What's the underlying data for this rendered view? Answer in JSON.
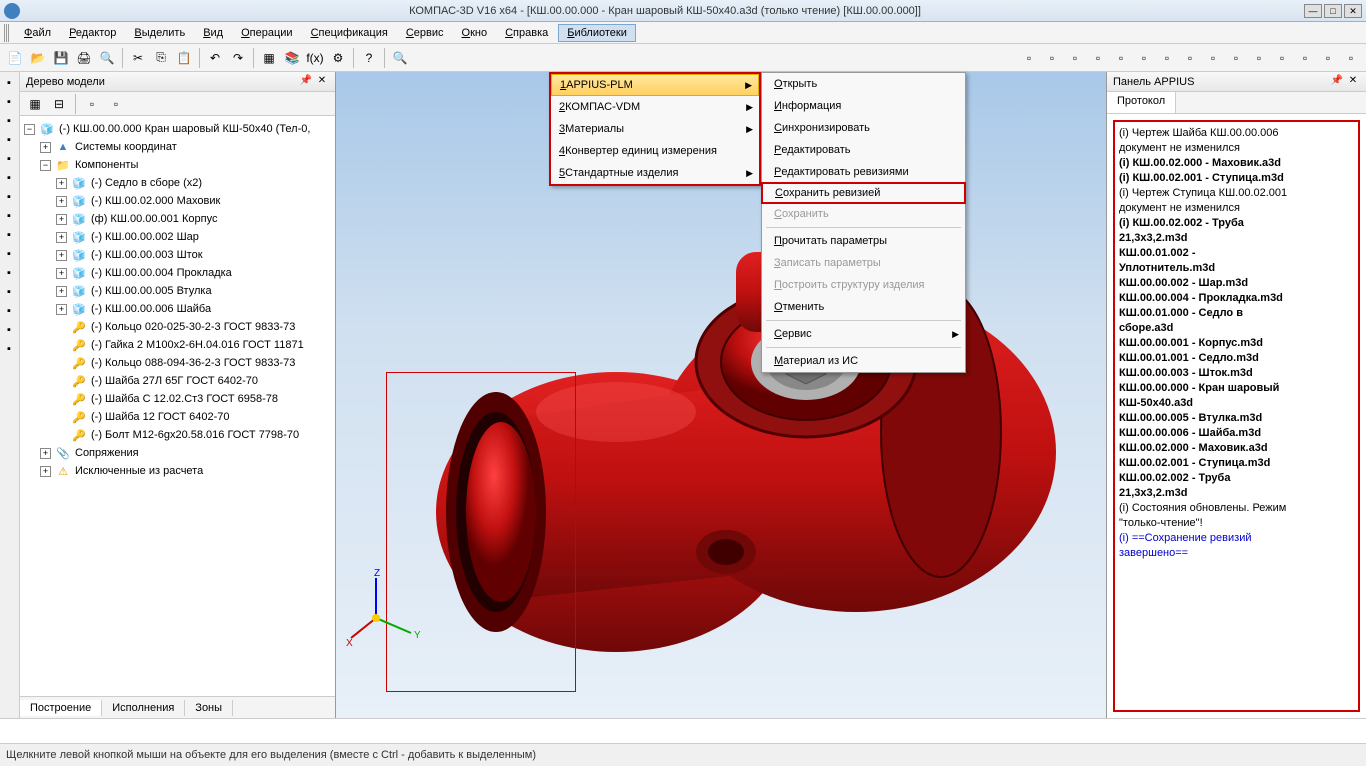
{
  "title": "КОМПАС-3D V16  x64 - [КШ.00.00.000 - Кран шаровый КШ-50х40.a3d (только чтение) [КШ.00.00.000]]",
  "menubar": [
    "Файл",
    "Редактор",
    "Выделить",
    "Вид",
    "Операции",
    "Спецификация",
    "Сервис",
    "Окно",
    "Справка",
    "Библиотеки"
  ],
  "menubar_active_index": 9,
  "tree": {
    "title": "Дерево модели",
    "tabs": [
      "Построение",
      "Исполнения",
      "Зоны"
    ],
    "root": "(-) КШ.00.00.000 Кран шаровый КШ-50х40 (Тел-0,",
    "n1": "Системы координат",
    "n2": "Компоненты",
    "items": [
      "(-) Седло в сборе (x2)",
      "(-) КШ.00.02.000 Маховик",
      "(ф) КШ.00.00.001 Корпус",
      "(-) КШ.00.00.002 Шар",
      "(-) КШ.00.00.003 Шток",
      "(-) КШ.00.00.004 Прокладка",
      "(-) КШ.00.00.005 Втулка",
      "(-) КШ.00.00.006 Шайба",
      "(-) Кольцо 020-025-30-2-3 ГОСТ 9833-73",
      "(-) Гайка 2 M100x2-6H.04.016 ГОСТ 11871",
      "(-) Кольцо 088-094-36-2-3 ГОСТ 9833-73",
      "(-) Шайба 27Л 65Г ГОСТ 6402-70",
      "(-) Шайба C 12.02.Ст3 ГОСТ 6958-78",
      "(-) Шайба 12  ГОСТ 6402-70",
      "(-) Болт M12-6gx20.58.016 ГОСТ 7798-70"
    ],
    "n3": "Сопряжения",
    "n4": "Исключенные из расчета"
  },
  "submenu1": [
    {
      "t": "1 APPIUS-PLM",
      "arrow": true,
      "hl": true
    },
    {
      "t": "2 КОМПАС-VDM",
      "arrow": true
    },
    {
      "t": "3 Материалы",
      "arrow": true
    },
    {
      "t": "4 Конвертер единиц измерения"
    },
    {
      "t": "5 Стандартные изделия",
      "arrow": true
    }
  ],
  "submenu2": [
    {
      "t": "Открыть"
    },
    {
      "t": "Информация"
    },
    {
      "t": "Синхронизировать"
    },
    {
      "t": "Редактировать"
    },
    {
      "t": "Редактировать ревизиями"
    },
    {
      "t": "Сохранить ревизией",
      "boxed": true
    },
    {
      "t": "Сохранить",
      "disabled": true
    },
    {
      "sep": true
    },
    {
      "t": "Прочитать параметры"
    },
    {
      "t": "Записать параметры",
      "disabled": true
    },
    {
      "t": "Построить структуру изделия",
      "disabled": true
    },
    {
      "t": "Отменить"
    },
    {
      "sep": true
    },
    {
      "t": "Сервис",
      "arrow": true
    },
    {
      "sep": true
    },
    {
      "t": "Материал из ИС"
    }
  ],
  "right": {
    "title": "Панель APPIUS",
    "tab": "Протокол",
    "lines": [
      {
        "t": "(i) Чертеж Шайба КШ.00.00.006"
      },
      {
        "t": " документ не изменился"
      },
      {
        "t": "(i) КШ.00.02.000 - Маховик.a3d",
        "b": true
      },
      {
        "t": "(i) КШ.00.02.001 - Ступица.m3d",
        "b": true
      },
      {
        "t": "(i) Чертеж Ступица КШ.00.02.001"
      },
      {
        "t": " документ не изменился"
      },
      {
        "t": "(i) КШ.00.02.002 - Труба",
        "b": true
      },
      {
        "t": "21,3х3,2.m3d",
        "b": true
      },
      {
        "t": "КШ.00.01.002 -",
        "b": true
      },
      {
        "t": "Уплотнитель.m3d",
        "b": true
      },
      {
        "t": "КШ.00.00.002 - Шар.m3d",
        "b": true
      },
      {
        "t": "КШ.00.00.004 - Прокладка.m3d",
        "b": true
      },
      {
        "t": "КШ.00.01.000 - Седло в",
        "b": true
      },
      {
        "t": "сборе.a3d",
        "b": true
      },
      {
        "t": "КШ.00.00.001 - Корпус.m3d",
        "b": true
      },
      {
        "t": "КШ.00.01.001 - Седло.m3d",
        "b": true
      },
      {
        "t": "КШ.00.00.003 - Шток.m3d",
        "b": true
      },
      {
        "t": "КШ.00.00.000 - Кран шаровый",
        "b": true
      },
      {
        "t": "КШ-50х40.a3d",
        "b": true
      },
      {
        "t": "КШ.00.00.005 - Втулка.m3d",
        "b": true
      },
      {
        "t": "КШ.00.00.006 - Шайба.m3d",
        "b": true
      },
      {
        "t": "КШ.00.02.000 - Маховик.a3d",
        "b": true
      },
      {
        "t": "КШ.00.02.001 - Ступица.m3d",
        "b": true
      },
      {
        "t": "КШ.00.02.002 - Труба",
        "b": true
      },
      {
        "t": "21,3х3,2.m3d",
        "b": true
      },
      {
        "t": "(i) Состояния обновлены. Режим"
      },
      {
        "t": "\"только-чтение\"!"
      },
      {
        "t": "(i) ==Сохранение ревизий",
        "blue": true
      },
      {
        "t": "завершено==",
        "blue": true
      }
    ]
  },
  "status": "Щелкните левой кнопкой мыши на объекте для его выделения (вместе с Ctrl - добавить к выделенным)",
  "colors": {
    "valve": "#c01010",
    "valve_dark": "#700808",
    "bolt": "#888",
    "bg_top": "#a8c8e8"
  }
}
